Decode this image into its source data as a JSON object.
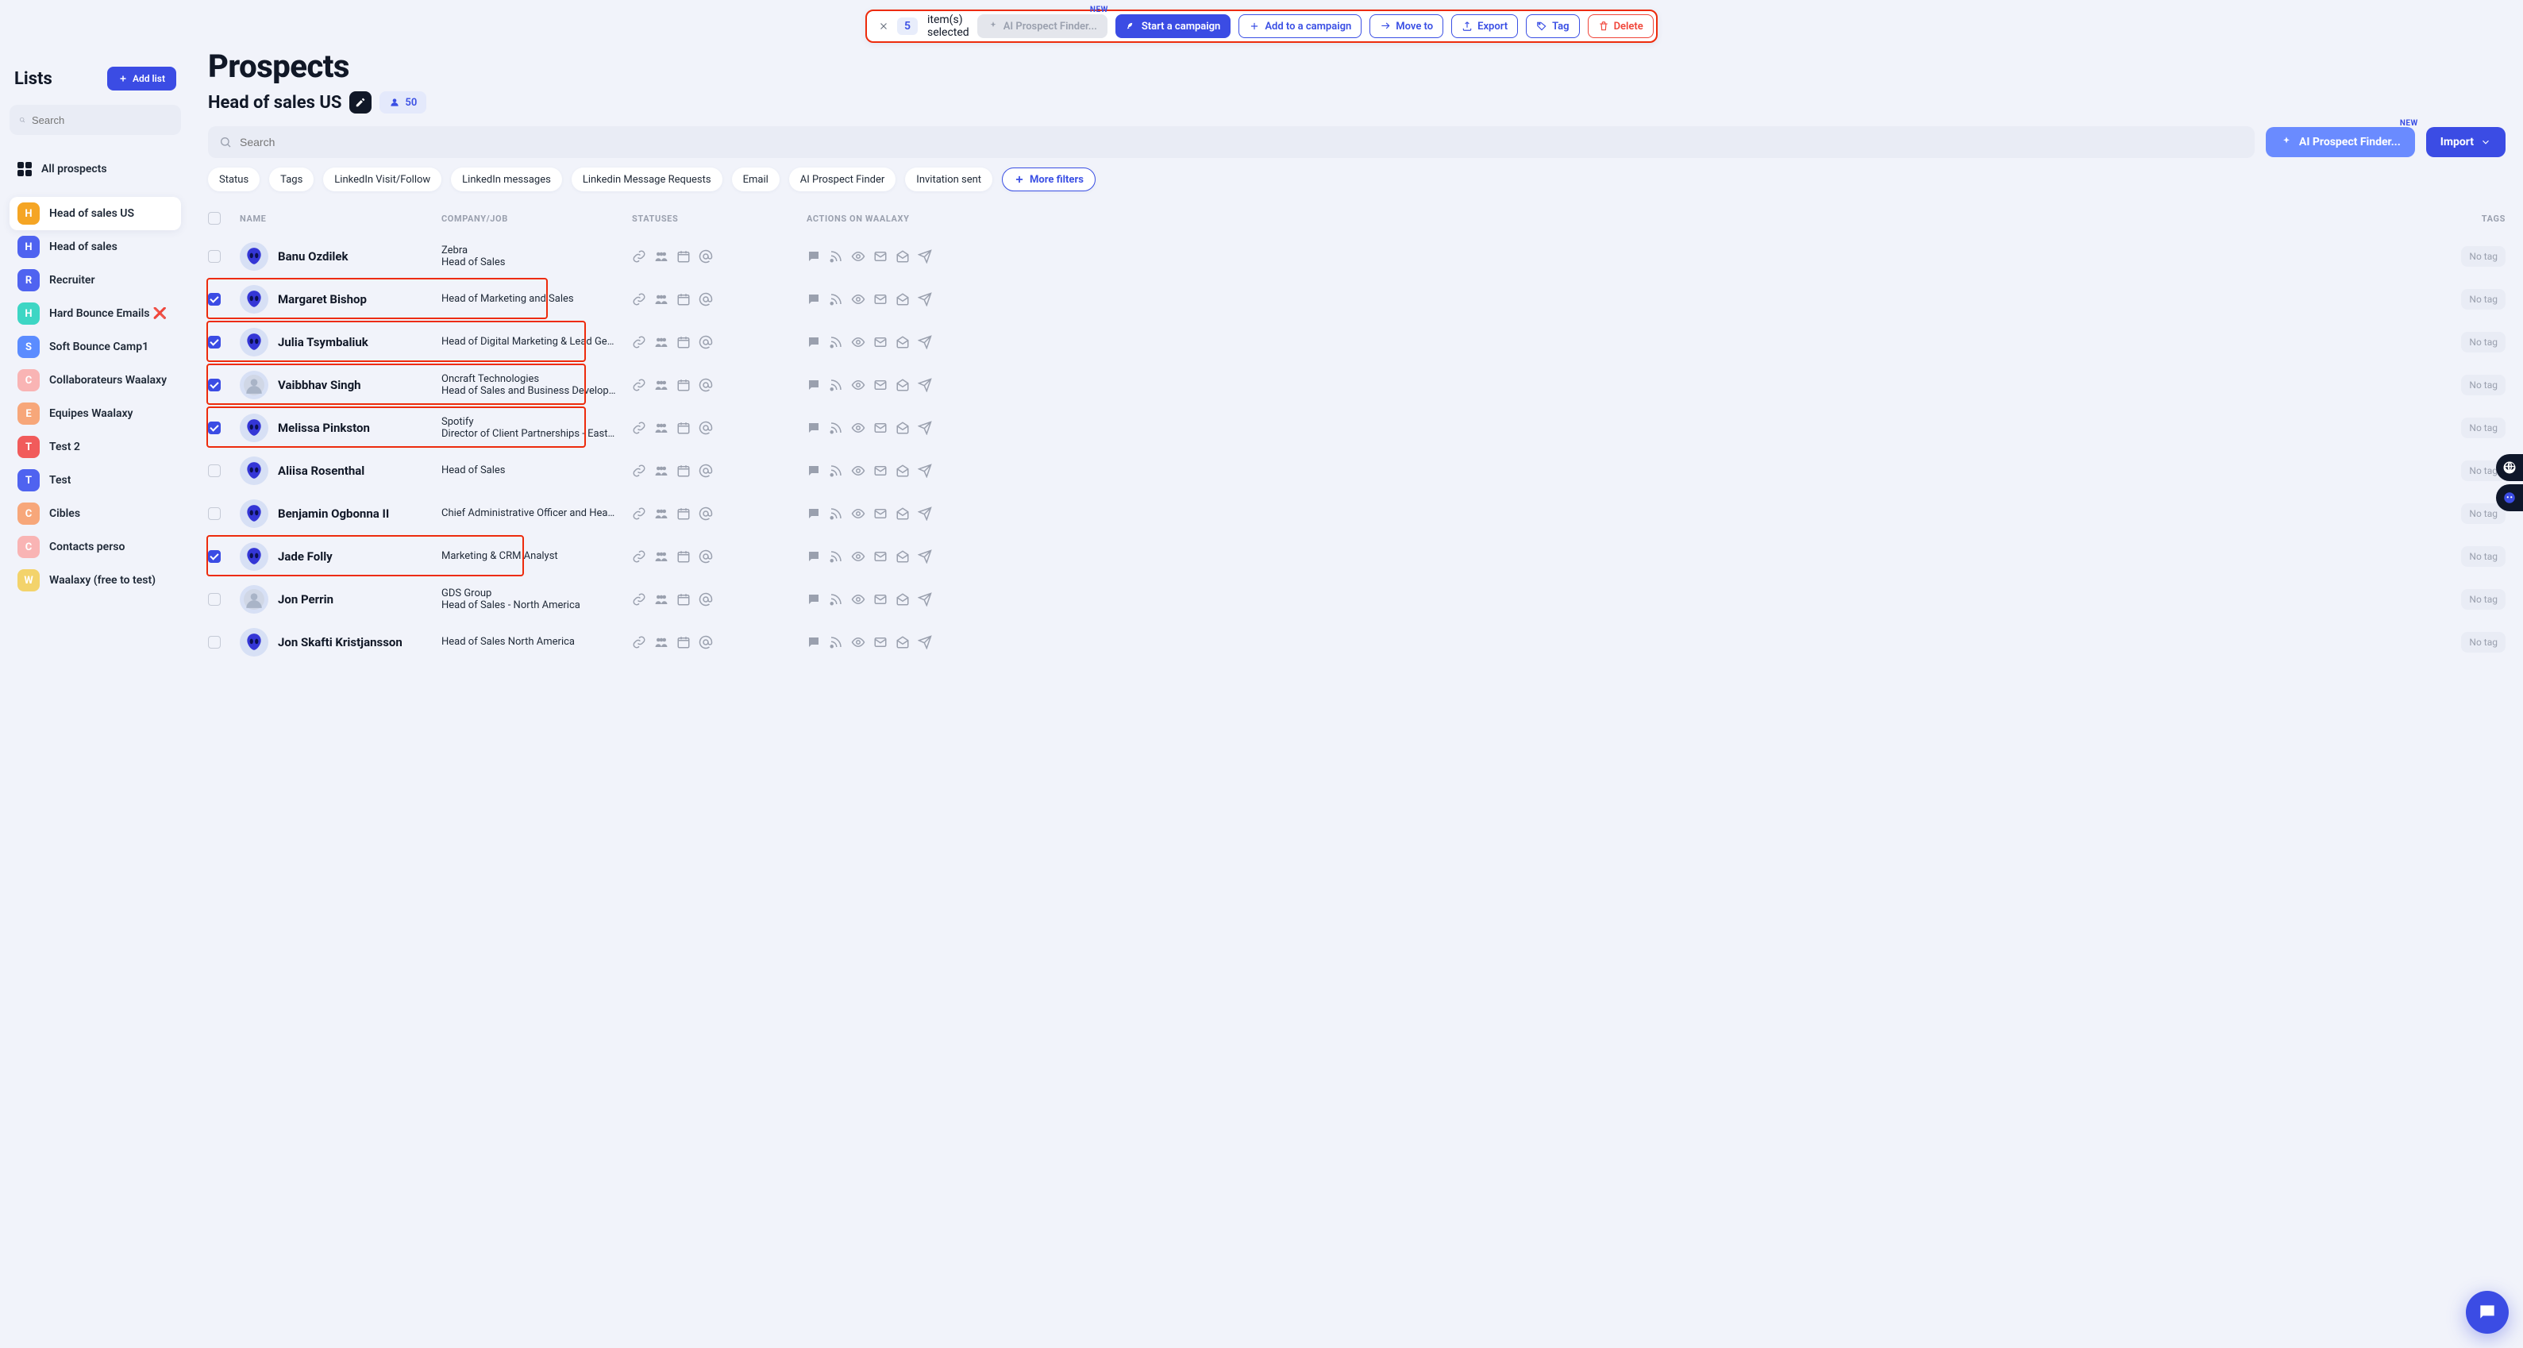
{
  "colors": {
    "accent": "#3B4CE4",
    "accent_soft": "#6A8BFF",
    "danger": "#F04438",
    "highlight_border": "#ED2B0C",
    "bg": "#f1f3fa",
    "muted": "#9AA0AE",
    "chip_bg": "#E9ECF5"
  },
  "selection_toolbar": {
    "count": "5",
    "label": "item(s) selected",
    "ai_btn": "AI Prospect Finder...",
    "new_badge": "NEW",
    "start": "Start a campaign",
    "add": "Add to a campaign",
    "move": "Move to",
    "export": "Export",
    "tag": "Tag",
    "delete": "Delete"
  },
  "sidebar": {
    "title": "Lists",
    "add_list": "Add list",
    "search_placeholder": "Search",
    "all_prospects": "All prospects",
    "items": [
      {
        "letter": "H",
        "label": "Head of sales US",
        "color": "#F5A524",
        "active": true
      },
      {
        "letter": "H",
        "label": "Head of sales",
        "color": "#4F63F0",
        "active": false
      },
      {
        "letter": "R",
        "label": "Recruiter",
        "color": "#4F63F0",
        "active": false
      },
      {
        "letter": "H",
        "label": "Hard Bounce Emails",
        "color": "#3DD6C4",
        "active": false,
        "emoji": "❌"
      },
      {
        "letter": "S",
        "label": "Soft Bounce Camp1",
        "color": "#5B8CFF",
        "active": false
      },
      {
        "letter": "C",
        "label": "Collaborateurs Waalaxy",
        "color": "#F9B4B4",
        "active": false
      },
      {
        "letter": "E",
        "label": "Equipes Waalaxy",
        "color": "#F7A77A",
        "active": false
      },
      {
        "letter": "T",
        "label": "Test 2",
        "color": "#F15B5B",
        "active": false
      },
      {
        "letter": "T",
        "label": "Test",
        "color": "#4F63F0",
        "active": false
      },
      {
        "letter": "C",
        "label": "Cibles",
        "color": "#F7A77A",
        "active": false
      },
      {
        "letter": "C",
        "label": "Contacts perso",
        "color": "#F9B4B4",
        "active": false
      },
      {
        "letter": "W",
        "label": "Waalaxy (free to test)",
        "color": "#F3D36B",
        "active": false
      }
    ]
  },
  "main": {
    "title": "Prospects",
    "list_name": "Head of sales US",
    "count": "50",
    "search_placeholder": "Search",
    "ai_btn": "AI Prospect Finder...",
    "new_badge": "NEW",
    "import": "Import",
    "filters": [
      "Status",
      "Tags",
      "LinkedIn Visit/Follow",
      "LinkedIn messages",
      "Linkedin Message Requests",
      "Email",
      "AI Prospect Finder",
      "Invitation sent"
    ],
    "more_filters": "More filters",
    "columns": {
      "name": "NAME",
      "company": "COMPANY/JOB",
      "statuses": "STATUSES",
      "actions": "ACTIONS ON WAALAXY",
      "tags": "TAGS"
    },
    "no_tag": "No tag",
    "rows": [
      {
        "checked": false,
        "avatar": "alien",
        "name": "Banu Ozdilek",
        "company": "Zebra",
        "job": "Head of Sales",
        "hl": "none"
      },
      {
        "checked": true,
        "avatar": "alien",
        "name": "Margaret Bishop",
        "company": "",
        "job": "Head of Marketing and Sales",
        "hl": "partial"
      },
      {
        "checked": true,
        "avatar": "alien",
        "name": "Julia Tsymbaliuk",
        "company": "",
        "job": "Head of Digital Marketing & Lead Genera…",
        "hl": "wide"
      },
      {
        "checked": true,
        "avatar": "photo",
        "name": "Vaibbhav Singh",
        "company": "Oncraft Technologies",
        "job": "Head of Sales and Business Development",
        "hl": "wide"
      },
      {
        "checked": true,
        "avatar": "alien",
        "name": "Melissa Pinkston",
        "company": "Spotify",
        "job": "Director of Client Partnerships - East at …",
        "hl": "wide"
      },
      {
        "checked": false,
        "avatar": "alien",
        "name": "Aliisa Rosenthal",
        "company": "",
        "job": "Head of Sales",
        "hl": "none"
      },
      {
        "checked": false,
        "avatar": "alien",
        "name": "Benjamin Ogbonna II",
        "company": "",
        "job": "Chief Administrative Officer and Head of …",
        "hl": "none"
      },
      {
        "checked": true,
        "avatar": "alien",
        "name": "Jade Folly",
        "company": "",
        "job": "Marketing & CRM Analyst",
        "hl": "partial"
      },
      {
        "checked": false,
        "avatar": "photo",
        "name": "Jon Perrin",
        "company": "GDS Group",
        "job": "Head of Sales - North America",
        "hl": "none"
      },
      {
        "checked": false,
        "avatar": "alien",
        "name": "Jon Skafti Kristjansson",
        "company": "",
        "job": "Head of Sales North America",
        "hl": "none"
      }
    ]
  }
}
